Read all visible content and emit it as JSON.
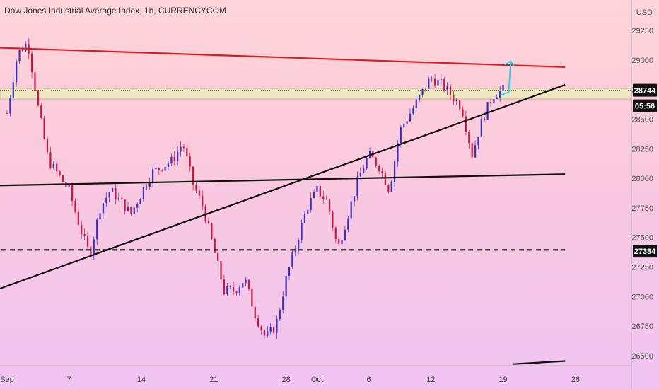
{
  "header": {
    "title": "Dow Jones Industrial Average Index, 1h, CURRENCYCOM",
    "currency": "USD"
  },
  "colors": {
    "resistance": "#d61f1f",
    "trend": "#111111",
    "zone_fill": "#efe6c2",
    "arrow": "#2ad1ea",
    "candle_up": "#3a2fbf",
    "candle_down": "#c8163f"
  },
  "chart_data": {
    "type": "candlestick",
    "x_ticks": [
      "Sep",
      "7",
      "14",
      "21",
      "28",
      "Oct",
      "6",
      "12",
      "19",
      "26"
    ],
    "y_ticks": [
      29250,
      29000,
      28750,
      28500,
      28250,
      28000,
      27750,
      27500,
      27250,
      27000,
      26750,
      26500
    ],
    "ylim": [
      26400,
      29450
    ],
    "last_price": "28744",
    "countdown": "05:56",
    "support_price": "27384",
    "path_points": [
      [
        "Sep 1",
        28550
      ],
      [
        "Sep 2",
        29050
      ],
      [
        "Sep 3",
        29150
      ],
      [
        "Sep 4",
        28600
      ],
      [
        "Sep 5",
        28150
      ],
      [
        "Sep 7",
        27900
      ],
      [
        "Sep 8",
        27600
      ],
      [
        "Sep 9",
        27350
      ],
      [
        "Sep 10",
        27750
      ],
      [
        "Sep 11",
        27900
      ],
      [
        "Sep 13",
        27700
      ],
      [
        "Sep 15",
        28050
      ],
      [
        "Sep 17",
        28150
      ],
      [
        "Sep 18",
        28300
      ],
      [
        "Sep 19",
        27950
      ],
      [
        "Sep 20",
        27750
      ],
      [
        "Sep 21",
        27400
      ],
      [
        "Sep 22",
        27050
      ],
      [
        "Sep 23",
        27050
      ],
      [
        "Sep 24",
        27150
      ],
      [
        "Sep 25",
        26850
      ],
      [
        "Sep 26",
        26650
      ],
      [
        "Sep 27",
        26750
      ],
      [
        "Sep 28",
        27150
      ],
      [
        "Sep 29",
        27450
      ],
      [
        "Sep 30",
        27750
      ],
      [
        "Oct 1",
        27900
      ],
      [
        "Oct 2",
        27800
      ],
      [
        "Oct 3",
        27400
      ],
      [
        "Oct 4",
        27700
      ],
      [
        "Oct 5",
        28000
      ],
      [
        "Oct 6",
        28200
      ],
      [
        "Oct 7",
        28100
      ],
      [
        "Oct 8",
        27900
      ],
      [
        "Oct 9",
        28400
      ],
      [
        "Oct 10",
        28550
      ],
      [
        "Oct 11",
        28700
      ],
      [
        "Oct 12",
        28850
      ],
      [
        "Oct 13",
        28800
      ],
      [
        "Oct 14",
        28700
      ],
      [
        "Oct 15",
        28600
      ],
      [
        "Oct 16",
        28200
      ],
      [
        "Oct 17",
        28500
      ],
      [
        "Oct 18",
        28700
      ],
      [
        "Oct 19",
        28750
      ]
    ],
    "lines": [
      {
        "name": "resistance",
        "from": [
          "Aug 29",
          29110
        ],
        "to": [
          "Oct 25",
          28940
        ],
        "style": "solid"
      },
      {
        "name": "rising-trendline",
        "from": [
          "Aug 29",
          26995
        ],
        "to": [
          "Oct 25",
          28790
        ],
        "style": "solid"
      },
      {
        "name": "horizontal-trend",
        "from": [
          "Aug 29",
          27935
        ],
        "to": [
          "Oct 25",
          28035
        ],
        "style": "solid"
      },
      {
        "name": "support",
        "from": [
          "Aug 29",
          27395
        ],
        "to": [
          "Oct 25",
          27395
        ],
        "style": "dashed"
      },
      {
        "name": "bottom-segment",
        "from": [
          "Oct 20",
          26430
        ],
        "to": [
          "Oct 25",
          26455
        ],
        "style": "solid"
      }
    ],
    "zone": {
      "low": 28670,
      "high": 28760
    },
    "projection": {
      "from": [
        "Oct 19",
        28745
      ],
      "to": [
        "Oct 20",
        28990
      ]
    }
  }
}
